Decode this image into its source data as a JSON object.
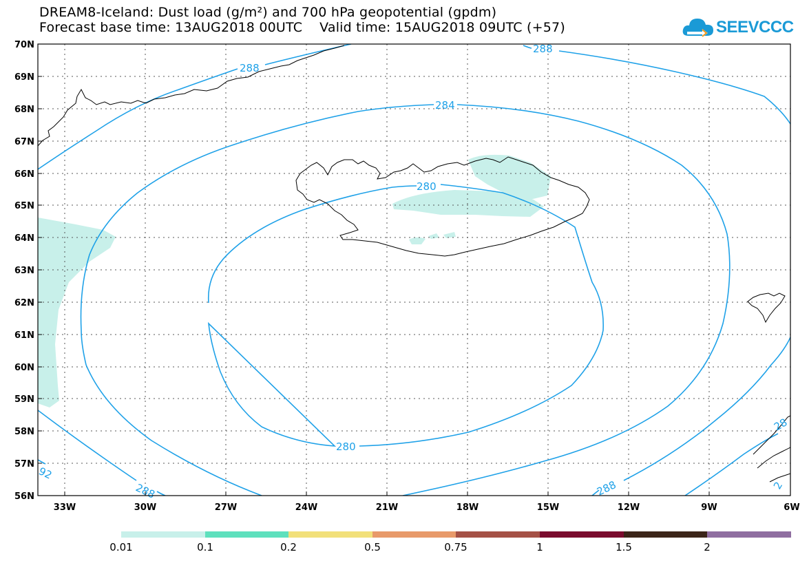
{
  "title_line1": "DREAM8-Iceland: Dust load (g/m²) and 700 hPa geopotential (gpdm)",
  "title_line2": "Forecast base time: 13AUG2018 00UTC    Valid time: 15AUG2018 09UTC (+57)",
  "logo_text": "SEEVCCC",
  "lat_labels": [
    "70N",
    "69N",
    "68N",
    "67N",
    "66N",
    "65N",
    "64N",
    "63N",
    "62N",
    "61N",
    "60N",
    "59N",
    "58N",
    "57N",
    "56N"
  ],
  "lon_labels": [
    "33W",
    "30W",
    "27W",
    "24W",
    "21W",
    "18W",
    "15W",
    "12W",
    "9W",
    "6W"
  ],
  "contour_labels": {
    "c288_top": "288",
    "c288_topright": "288",
    "c284": "284",
    "c280_top": "280",
    "c280_bottom": "280",
    "c288_bottom": "288",
    "c288_bottomright": "288",
    "c292_left": "92",
    "c28_right": "28",
    "c2_right": "2"
  },
  "legend": {
    "labels": [
      "0.01",
      "0.1",
      "0.2",
      "0.5",
      "0.75",
      "1",
      "1.5",
      "2"
    ],
    "colors": [
      "#c8f0ea",
      "#5ee0bd",
      "#f2e07a",
      "#e89a6a",
      "#a55146",
      "#7a0c2e",
      "#3b2519",
      "#8f6ea0"
    ]
  },
  "colors": {
    "contour": "#1ea1e8",
    "dust_low": "#c8f0ea",
    "coast": "#000000"
  }
}
